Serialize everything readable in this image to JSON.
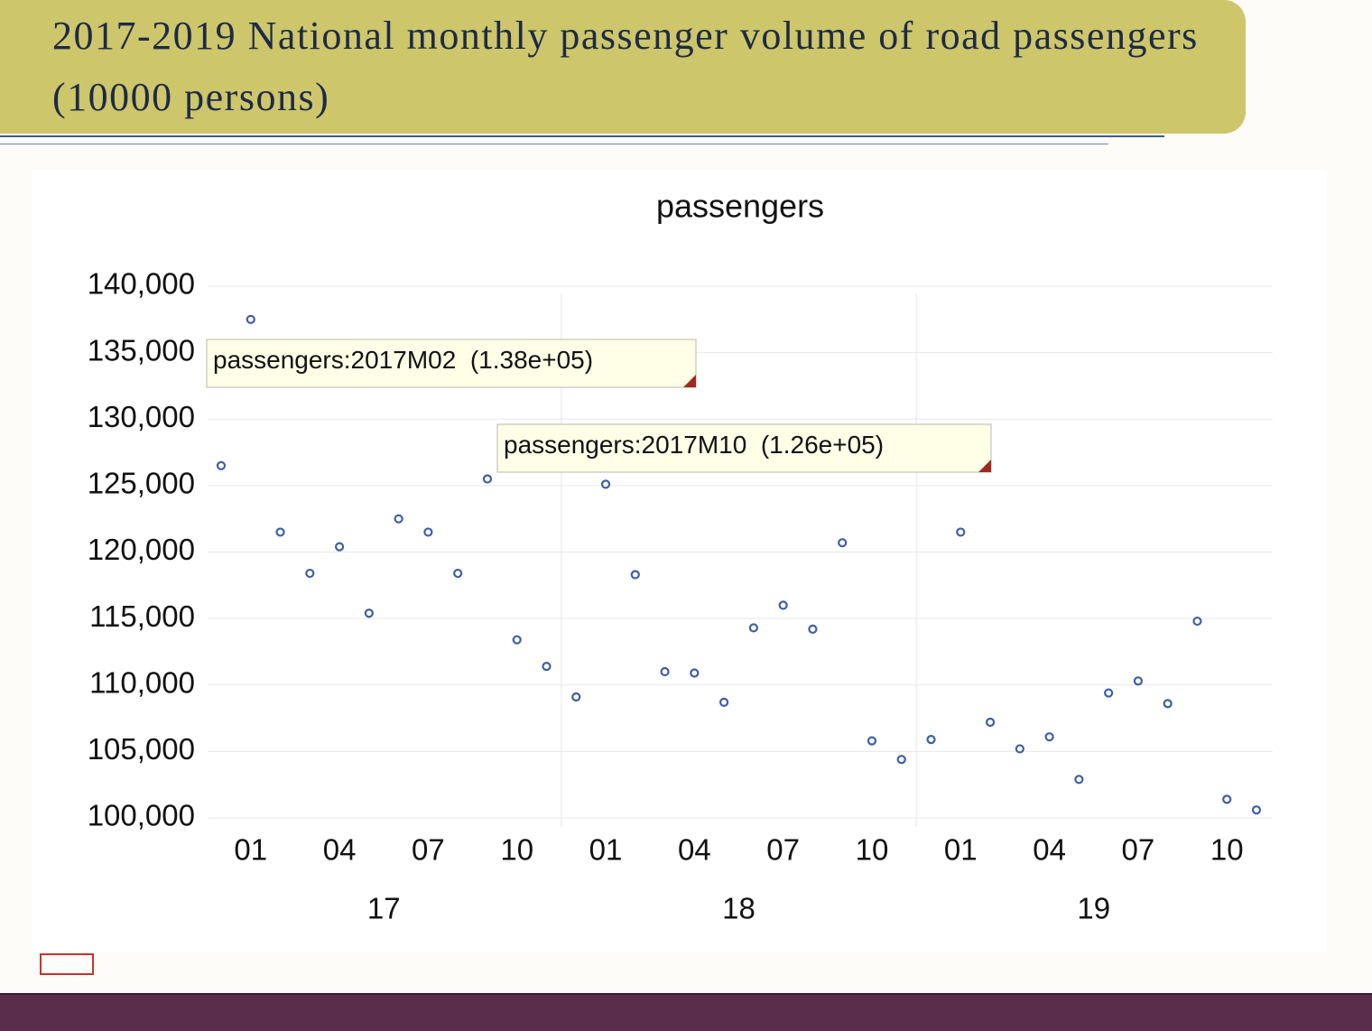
{
  "header": {
    "title_lines": [
      "2017-2019 National monthly passenger volume of road passengers",
      "(10000 persons)"
    ]
  },
  "chart_data": {
    "type": "scatter",
    "title": "passengers",
    "categories": [
      null,
      "01",
      null,
      null,
      "04",
      null,
      null,
      "07",
      null,
      null,
      "10",
      null,
      null,
      "01",
      null,
      null,
      "04",
      null,
      null,
      "07",
      null,
      null,
      "10",
      null,
      null,
      "01",
      null,
      null,
      "04",
      null,
      null,
      "07",
      null,
      null,
      "10",
      null
    ],
    "groups": [
      "17",
      "18",
      "19"
    ],
    "values": [
      126500,
      137500,
      121500,
      118400,
      120400,
      115400,
      122500,
      121500,
      118400,
      125500,
      113400,
      111400,
      109100,
      125100,
      118300,
      111000,
      110900,
      108700,
      114300,
      116000,
      114200,
      120700,
      105800,
      104400,
      105900,
      121500,
      107200,
      105200,
      106100,
      102900,
      109400,
      110300,
      108600,
      114800,
      101400,
      100600
    ],
    "color": "#3d5fa8",
    "ylim": [
      100000,
      140000
    ],
    "yticks": [
      {
        "value": 100000,
        "label": "100,000"
      },
      {
        "value": 105000,
        "label": "105,000"
      },
      {
        "value": 110000,
        "label": "110,000"
      },
      {
        "value": 115000,
        "label": "115,000"
      },
      {
        "value": 120000,
        "label": "120,000"
      },
      {
        "value": 125000,
        "label": "125,000"
      },
      {
        "value": 130000,
        "label": "130,000"
      },
      {
        "value": 135000,
        "label": "135,000"
      },
      {
        "value": 140000,
        "label": "140,000"
      }
    ],
    "grid": true,
    "annotations": [
      "passengers:2017M02  (1.38e+05)",
      "passengers:2017M10  (1.26e+05)"
    ]
  }
}
